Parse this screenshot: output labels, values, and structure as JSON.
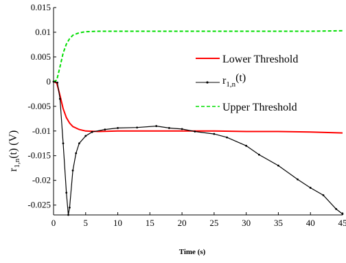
{
  "chart_data": {
    "type": "line",
    "xlabel": "Time (s)",
    "ylabel": {
      "base": "r",
      "sub": "1,n",
      "rest": "(t) (V)"
    },
    "xlim": [
      0,
      45
    ],
    "ylim": [
      -0.027,
      0.015
    ],
    "xticks": [
      0,
      5,
      10,
      15,
      20,
      25,
      30,
      35,
      40,
      45
    ],
    "xtick_labels": [
      "0",
      "5",
      "10",
      "15",
      "20",
      "25",
      "30",
      "35",
      "40",
      "45"
    ],
    "yticks": [
      0.015,
      0.01,
      0.005,
      0,
      -0.005,
      -0.01,
      -0.015,
      -0.02,
      -0.025
    ],
    "ytick_labels": [
      "0.015",
      "0.01",
      "0.005",
      "0",
      "-0.005",
      "-0.01",
      "-0.015",
      "-0.02",
      "-0.025"
    ],
    "grid": false,
    "legend_position": "right, upper-middle",
    "series": [
      {
        "name": "Lower Threshold",
        "color": "#ff0000",
        "style": "solid",
        "x": [
          0,
          0.5,
          1,
          1.5,
          2,
          2.5,
          3,
          4,
          5,
          7,
          10,
          15,
          20,
          25,
          30,
          35,
          40,
          45
        ],
        "y": [
          0,
          -0.0003,
          -0.0028,
          -0.0055,
          -0.0073,
          -0.0084,
          -0.0091,
          -0.0097,
          -0.01,
          -0.0101,
          -0.01,
          -0.01,
          -0.01,
          -0.01,
          -0.0101,
          -0.0101,
          -0.0102,
          -0.0104
        ]
      },
      {
        "name": "r_{1,n}(t)",
        "color": "#000000",
        "style": "solid-dots",
        "x": [
          0,
          0.6,
          1,
          1.5,
          2,
          2.3,
          2.5,
          3,
          3.5,
          4,
          5,
          6,
          8,
          10,
          13,
          16,
          18,
          20,
          22,
          25,
          27,
          30,
          32,
          35,
          38,
          40,
          42,
          44,
          45
        ],
        "y": [
          0,
          -0.0002,
          -0.0035,
          -0.0125,
          -0.0225,
          -0.027,
          -0.0255,
          -0.018,
          -0.0145,
          -0.0125,
          -0.011,
          -0.0102,
          -0.0097,
          -0.0094,
          -0.0093,
          -0.009,
          -0.0094,
          -0.0096,
          -0.0101,
          -0.0106,
          -0.0113,
          -0.013,
          -0.0148,
          -0.017,
          -0.0198,
          -0.0215,
          -0.023,
          -0.0258,
          -0.0268
        ]
      },
      {
        "name": "Upper Threshold",
        "color": "#00dd00",
        "style": "dashed",
        "x": [
          0,
          0.5,
          1,
          1.5,
          2,
          2.5,
          3,
          4,
          5,
          7,
          10,
          15,
          20,
          25,
          30,
          35,
          40,
          45
        ],
        "y": [
          0,
          0.0003,
          0.003,
          0.0058,
          0.0076,
          0.0087,
          0.0094,
          0.0099,
          0.0101,
          0.0102,
          0.0102,
          0.0102,
          0.0102,
          0.0102,
          0.0102,
          0.0102,
          0.0102,
          0.0103
        ]
      }
    ],
    "legend": [
      {
        "label": "Lower Threshold",
        "color": "#ff0000",
        "style": "solid"
      },
      {
        "label_base": "r",
        "label_sub": "1,n",
        "label_rest": "(t)",
        "color": "#000000",
        "style": "solid-dots"
      },
      {
        "label": "Upper Threshold",
        "color": "#00dd00",
        "style": "dashed"
      }
    ]
  }
}
